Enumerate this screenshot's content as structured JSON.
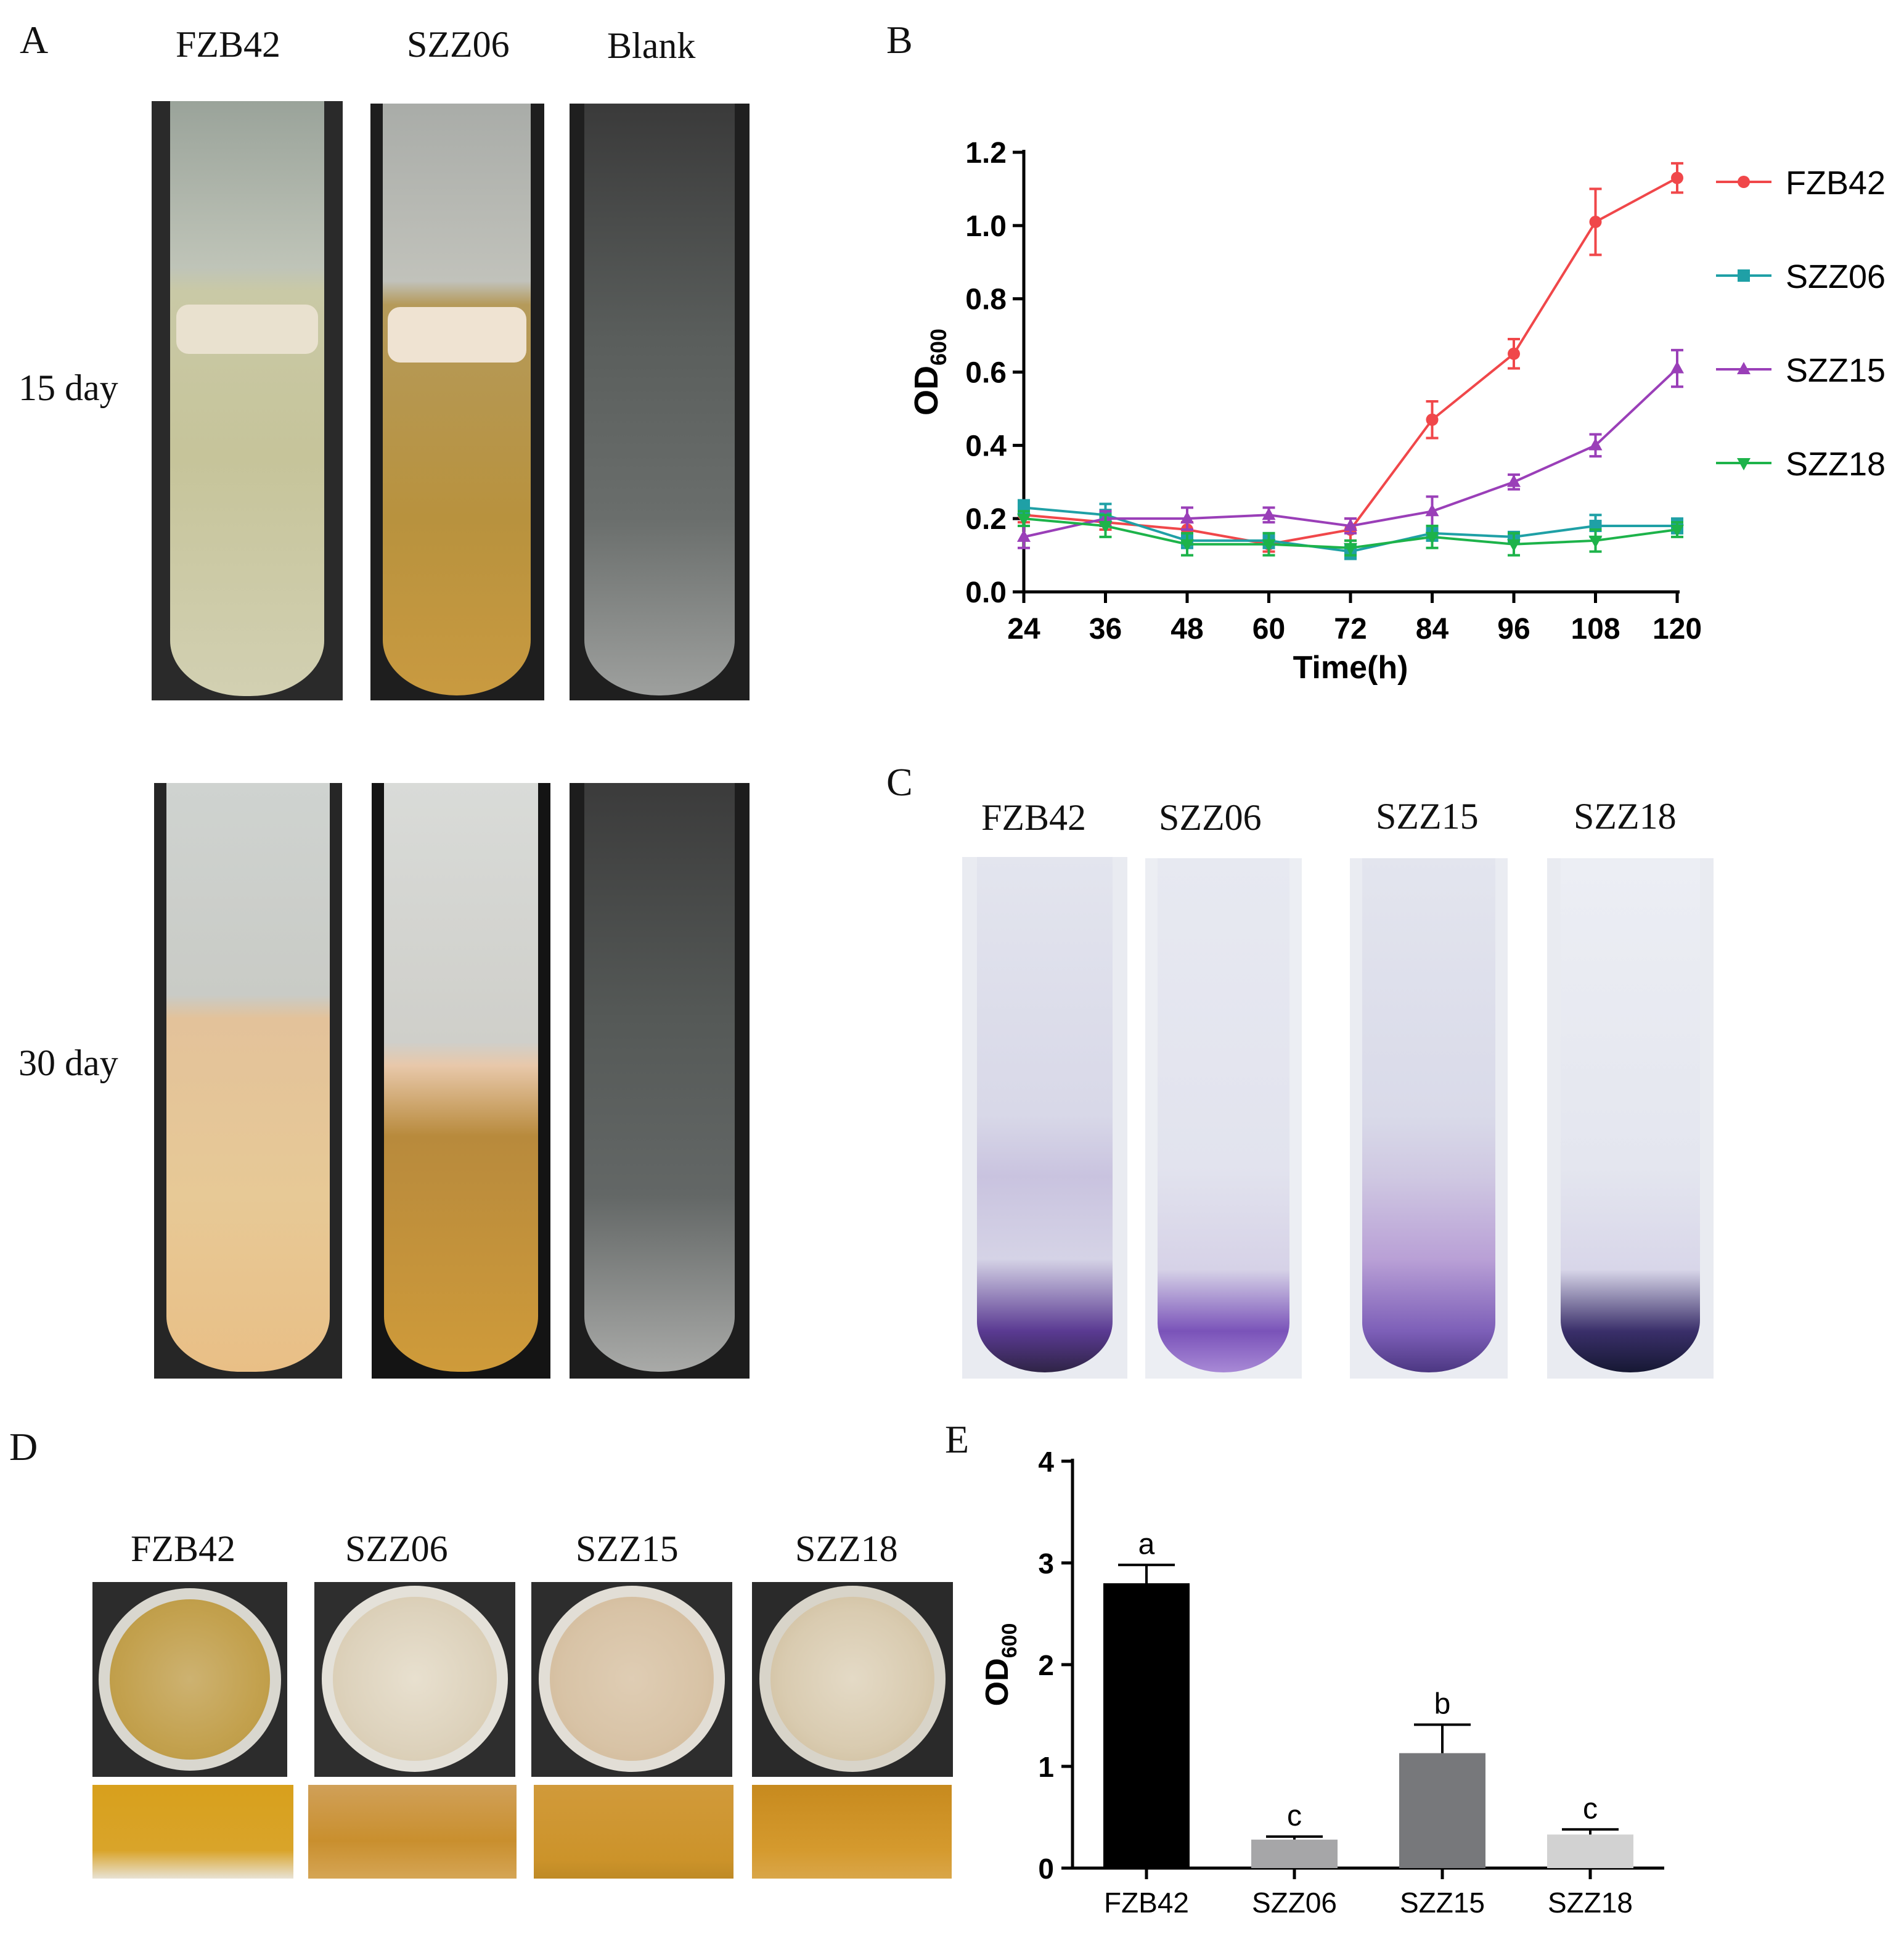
{
  "panels": {
    "A": {
      "letter": "A",
      "columns": [
        "FZB42",
        "SZZ06",
        "Blank"
      ],
      "rows": [
        "15 day",
        "30 day"
      ]
    },
    "C": {
      "letter": "C",
      "columns": [
        "FZB42",
        "SZZ06",
        "SZZ15",
        "SZZ18"
      ]
    },
    "D": {
      "letter": "D",
      "columns": [
        "FZB42",
        "SZZ06",
        "SZZ15",
        "SZZ18"
      ]
    }
  },
  "chart_data": [
    {
      "panel": "B",
      "type": "line",
      "xlabel": "Time(h)",
      "ylabel": "OD",
      "ylabel_sub": "600",
      "x": [
        24,
        36,
        48,
        60,
        72,
        84,
        96,
        108,
        120
      ],
      "xlim": [
        24,
        120
      ],
      "ylim": [
        0,
        1.2
      ],
      "yticks": [
        0.0,
        0.2,
        0.4,
        0.6,
        0.8,
        1.0,
        1.2
      ],
      "ytick_labels": [
        "0.0",
        "0.2",
        "0.4",
        "0.6",
        "0.8",
        "1.0",
        "1.2"
      ],
      "xtick_labels": [
        "24",
        "36",
        "48",
        "60",
        "72",
        "84",
        "96",
        "108",
        "120"
      ],
      "legend_position": "right",
      "series": [
        {
          "name": "FZB42",
          "color": "#f0474a",
          "marker": "circle",
          "values": [
            0.21,
            0.19,
            0.17,
            0.13,
            0.17,
            0.47,
            0.65,
            1.01,
            1.13
          ],
          "errors": [
            0.02,
            0.02,
            0.02,
            0.02,
            0.03,
            0.05,
            0.04,
            0.09,
            0.04
          ]
        },
        {
          "name": "SZZ06",
          "color": "#1fa0a6",
          "marker": "square",
          "values": [
            0.23,
            0.21,
            0.14,
            0.14,
            0.11,
            0.16,
            0.15,
            0.18,
            0.18
          ],
          "errors": [
            0.02,
            0.03,
            0.02,
            0.02,
            0.02,
            0.02,
            0.01,
            0.03,
            0.02
          ]
        },
        {
          "name": "SZZ15",
          "color": "#9a3fb8",
          "marker": "triangle",
          "values": [
            0.15,
            0.2,
            0.2,
            0.21,
            0.18,
            0.22,
            0.3,
            0.4,
            0.61
          ],
          "errors": [
            0.03,
            0.02,
            0.03,
            0.02,
            0.02,
            0.04,
            0.02,
            0.03,
            0.05
          ]
        },
        {
          "name": "SZZ18",
          "color": "#1db34a",
          "marker": "triangle-down",
          "values": [
            0.2,
            0.18,
            0.13,
            0.13,
            0.12,
            0.15,
            0.13,
            0.14,
            0.17
          ],
          "errors": [
            0.02,
            0.03,
            0.03,
            0.03,
            0.02,
            0.03,
            0.03,
            0.03,
            0.02
          ]
        }
      ]
    },
    {
      "panel": "E",
      "type": "bar",
      "ylabel": "OD",
      "ylabel_sub": "600",
      "categories": [
        "FZB42",
        "SZZ06",
        "SZZ15",
        "SZZ18"
      ],
      "values": [
        2.8,
        0.28,
        1.13,
        0.33
      ],
      "errors": [
        0.18,
        0.03,
        0.28,
        0.05
      ],
      "significance": [
        "a",
        "c",
        "b",
        "c"
      ],
      "colors": [
        "#000000",
        "#a6a6a8",
        "#77787b",
        "#d2d2d2"
      ],
      "ylim": [
        0,
        4
      ],
      "yticks": [
        0,
        1,
        2,
        3,
        4
      ],
      "ytick_labels": [
        "0",
        "1",
        "2",
        "3",
        "4"
      ]
    }
  ]
}
